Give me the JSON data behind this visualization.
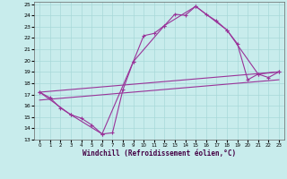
{
  "xlabel": "Windchill (Refroidissement éolien,°C)",
  "xlim": [
    -0.5,
    23.5
  ],
  "ylim": [
    13,
    25.2
  ],
  "yticks": [
    13,
    14,
    15,
    16,
    17,
    18,
    19,
    20,
    21,
    22,
    23,
    24,
    25
  ],
  "xticks": [
    0,
    1,
    2,
    3,
    4,
    5,
    6,
    7,
    8,
    9,
    10,
    11,
    12,
    13,
    14,
    15,
    16,
    17,
    18,
    19,
    20,
    21,
    22,
    23
  ],
  "bg_color": "#c8ecec",
  "grid_color": "#a8d8d8",
  "line_color": "#993399",
  "line1_x": [
    0,
    1,
    2,
    3,
    4,
    5,
    6,
    7,
    8,
    9,
    10,
    11,
    12,
    13,
    14,
    15,
    16,
    17,
    18,
    19,
    20,
    21,
    22,
    23
  ],
  "line1_y": [
    17.2,
    16.7,
    15.8,
    15.2,
    14.9,
    14.3,
    13.5,
    13.6,
    17.4,
    19.9,
    22.2,
    22.4,
    23.1,
    24.1,
    24.0,
    24.8,
    24.1,
    23.5,
    22.7,
    21.5,
    18.3,
    18.8,
    18.5,
    19.0
  ],
  "line2_x": [
    0,
    3,
    6,
    9,
    12,
    15,
    18,
    21,
    23
  ],
  "line2_y": [
    17.2,
    15.2,
    13.5,
    19.9,
    23.1,
    24.8,
    22.7,
    18.8,
    19.0
  ],
  "line3_x": [
    0,
    23
  ],
  "line3_y": [
    17.2,
    19.0
  ],
  "line4_x": [
    0,
    23
  ],
  "line4_y": [
    16.5,
    18.3
  ]
}
